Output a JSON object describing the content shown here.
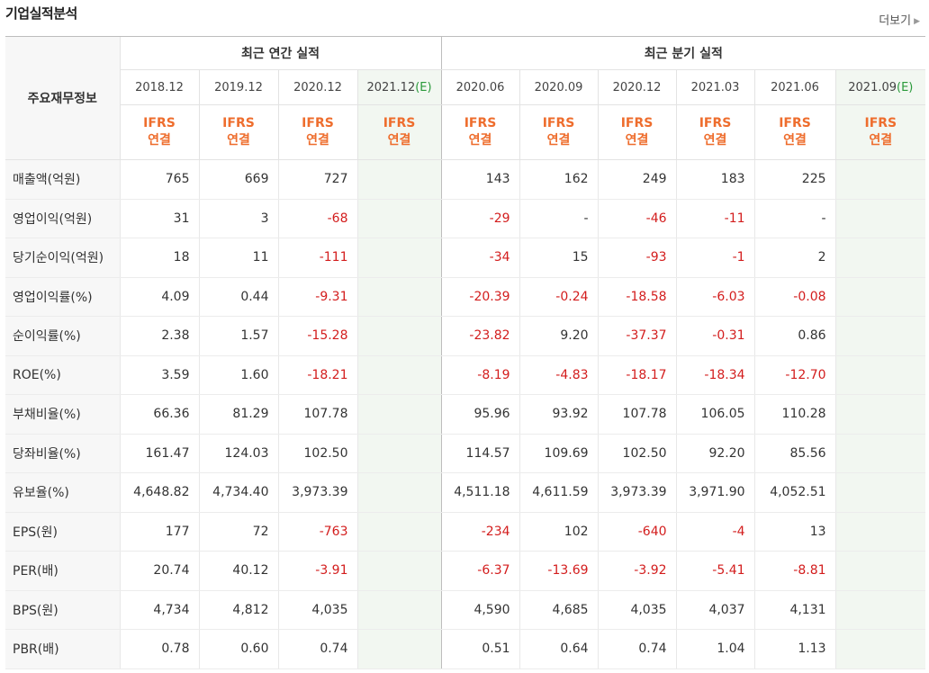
{
  "header": {
    "title": "기업실적분석",
    "more_label": "더보기"
  },
  "table": {
    "corner": "주요재무정보",
    "groups": [
      "최근 연간 실적",
      "최근 분기 실적"
    ],
    "annual_periods": [
      "2018.12",
      "2019.12",
      "2020.12",
      "2021.12"
    ],
    "quarter_periods": [
      "2020.06",
      "2020.09",
      "2020.12",
      "2021.03",
      "2021.06",
      "2021.09"
    ],
    "estimate_mark": "(E)",
    "ifrs_line1": "IFRS",
    "ifrs_line2": "연결",
    "rows": [
      {
        "label": "매출액(억원)",
        "annual": [
          "765",
          "669",
          "727",
          ""
        ],
        "quarter": [
          "143",
          "162",
          "249",
          "183",
          "225",
          ""
        ]
      },
      {
        "label": "영업이익(억원)",
        "annual": [
          "31",
          "3",
          "-68",
          ""
        ],
        "quarter": [
          "-29",
          "-",
          "-46",
          "-11",
          "-",
          ""
        ]
      },
      {
        "label": "당기순이익(억원)",
        "annual": [
          "18",
          "11",
          "-111",
          ""
        ],
        "quarter": [
          "-34",
          "15",
          "-93",
          "-1",
          "2",
          ""
        ]
      },
      {
        "label": "영업이익률(%)",
        "annual": [
          "4.09",
          "0.44",
          "-9.31",
          ""
        ],
        "quarter": [
          "-20.39",
          "-0.24",
          "-18.58",
          "-6.03",
          "-0.08",
          ""
        ]
      },
      {
        "label": "순이익률(%)",
        "annual": [
          "2.38",
          "1.57",
          "-15.28",
          ""
        ],
        "quarter": [
          "-23.82",
          "9.20",
          "-37.37",
          "-0.31",
          "0.86",
          ""
        ]
      },
      {
        "label": "ROE(%)",
        "annual": [
          "3.59",
          "1.60",
          "-18.21",
          ""
        ],
        "quarter": [
          "-8.19",
          "-4.83",
          "-18.17",
          "-18.34",
          "-12.70",
          ""
        ]
      },
      {
        "label": "부채비율(%)",
        "annual": [
          "66.36",
          "81.29",
          "107.78",
          ""
        ],
        "quarter": [
          "95.96",
          "93.92",
          "107.78",
          "106.05",
          "110.28",
          ""
        ]
      },
      {
        "label": "당좌비율(%)",
        "annual": [
          "161.47",
          "124.03",
          "102.50",
          ""
        ],
        "quarter": [
          "114.57",
          "109.69",
          "102.50",
          "92.20",
          "85.56",
          ""
        ]
      },
      {
        "label": "유보율(%)",
        "annual": [
          "4,648.82",
          "4,734.40",
          "3,973.39",
          ""
        ],
        "quarter": [
          "4,511.18",
          "4,611.59",
          "3,973.39",
          "3,971.90",
          "4,052.51",
          ""
        ]
      },
      {
        "label": "EPS(원)",
        "annual": [
          "177",
          "72",
          "-763",
          ""
        ],
        "quarter": [
          "-234",
          "102",
          "-640",
          "-4",
          "13",
          ""
        ]
      },
      {
        "label": "PER(배)",
        "annual": [
          "20.74",
          "40.12",
          "-3.91",
          ""
        ],
        "quarter": [
          "-6.37",
          "-13.69",
          "-3.92",
          "-5.41",
          "-8.81",
          ""
        ]
      },
      {
        "label": "BPS(원)",
        "annual": [
          "4,734",
          "4,812",
          "4,035",
          ""
        ],
        "quarter": [
          "4,590",
          "4,685",
          "4,035",
          "4,037",
          "4,131",
          ""
        ]
      },
      {
        "label": "PBR(배)",
        "annual": [
          "0.78",
          "0.60",
          "0.74",
          ""
        ],
        "quarter": [
          "0.51",
          "0.64",
          "0.74",
          "1.04",
          "1.13",
          ""
        ]
      }
    ]
  },
  "colors": {
    "negative": "#d31d1d",
    "ifrs": "#ee6d2d",
    "estimate_mark": "#2a9a3a",
    "estimate_bg": "#f2f7f1",
    "label_bg": "#f7f7f7"
  }
}
